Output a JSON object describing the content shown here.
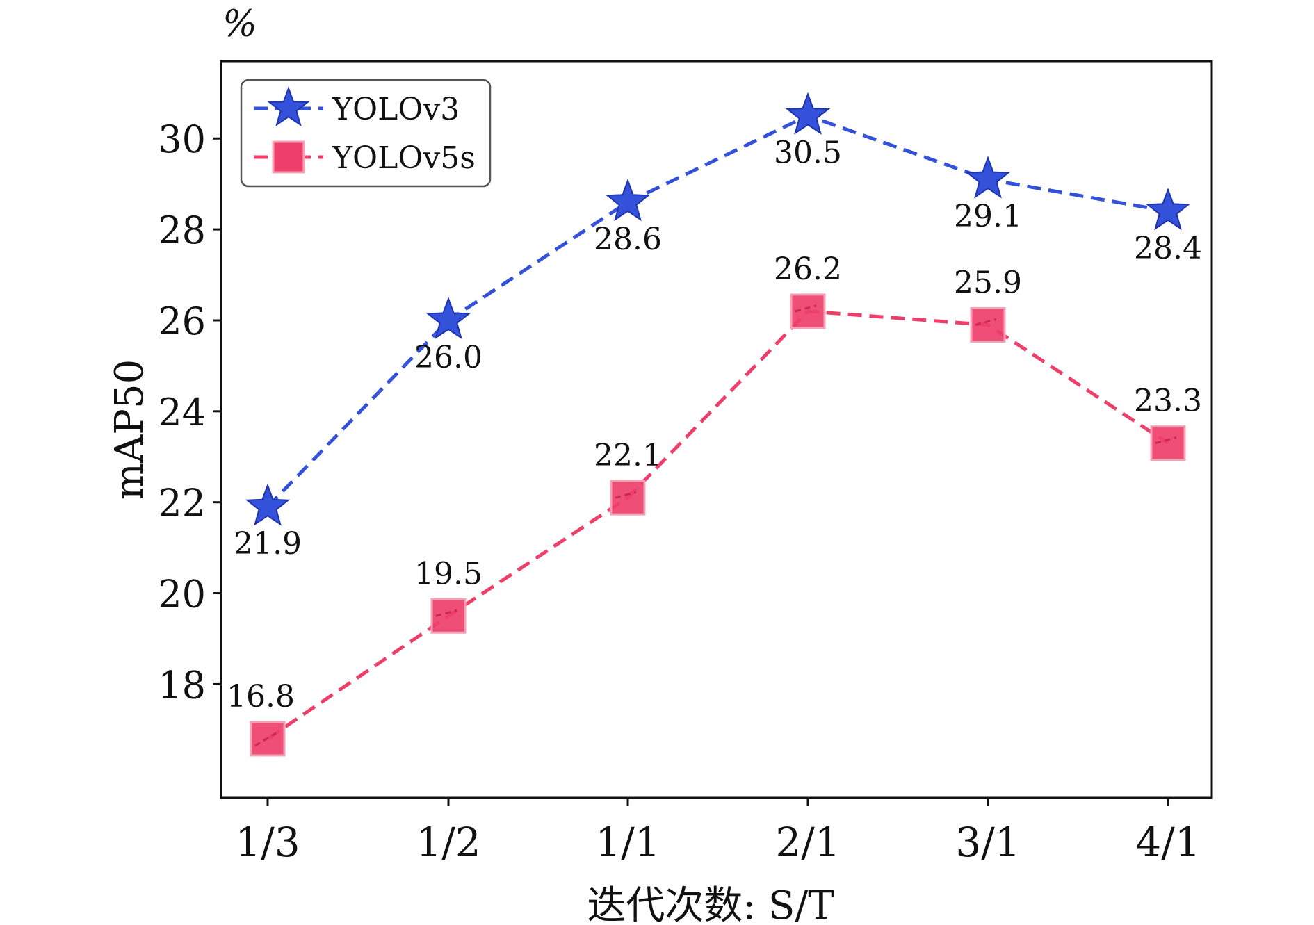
{
  "chart_data": {
    "type": "line",
    "title": "",
    "unit_label": "%",
    "xlabel": "迭代次数: S/T",
    "ylabel": "mAP50",
    "categories": [
      "1/3",
      "1/2",
      "1/1",
      "2/1",
      "3/1",
      "4/1"
    ],
    "ylim": [
      15.5,
      31.7
    ],
    "yticks": [
      18,
      20,
      22,
      24,
      26,
      28,
      30
    ],
    "grid": false,
    "legend_position": "top-left",
    "series": [
      {
        "name": "YOLOv3",
        "values": [
          21.9,
          26.0,
          28.6,
          30.5,
          29.1,
          28.4
        ],
        "labels": [
          "21.9",
          "26.0",
          "28.6",
          "30.5",
          "29.1",
          "28.4"
        ],
        "label_position": "below",
        "marker": "star",
        "line_style": "dashed",
        "color": "#3451d9"
      },
      {
        "name": "YOLOv5s",
        "values": [
          16.8,
          19.5,
          22.1,
          26.2,
          25.9,
          23.3
        ],
        "labels": [
          "16.8",
          "19.5",
          "22.1",
          "26.2",
          "25.9",
          "23.3"
        ],
        "label_position": "above",
        "marker": "square",
        "line_style": "dashed",
        "color": "#ee3f6b"
      }
    ]
  }
}
